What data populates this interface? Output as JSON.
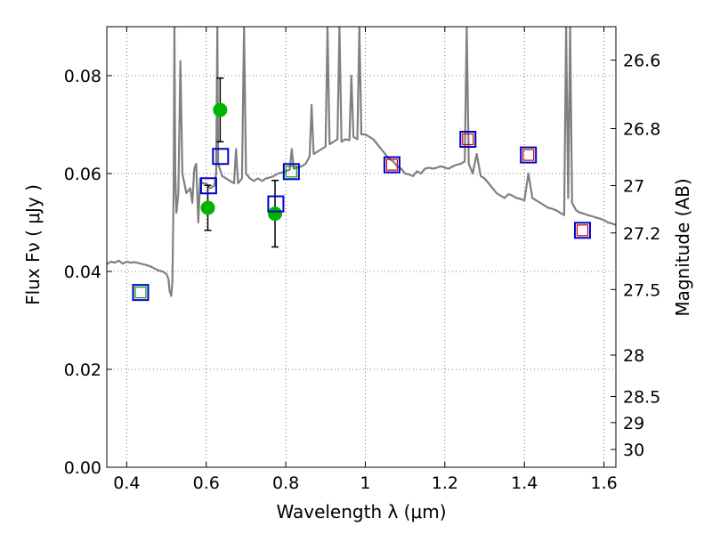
{
  "chart_data": {
    "type": "scatter",
    "xlabel": "Wavelength  λ (μm)",
    "ylabel": "Flux  Fν  ( μJy )",
    "ylabel_right": "Magnitude (AB)",
    "xlim": [
      0.35,
      1.63
    ],
    "ylim": [
      0.0,
      0.09
    ],
    "grid": true,
    "x_ticks": [
      {
        "value": 0.4,
        "label": "0.4"
      },
      {
        "value": 0.6,
        "label": "0.6"
      },
      {
        "value": 0.8,
        "label": "0.8"
      },
      {
        "value": 1.0,
        "label": "1"
      },
      {
        "value": 1.2,
        "label": "1.2"
      },
      {
        "value": 1.4,
        "label": "1.4"
      },
      {
        "value": 1.6,
        "label": "1.6"
      }
    ],
    "y_ticks": [
      {
        "value": 0.0,
        "label": "0.00"
      },
      {
        "value": 0.02,
        "label": "0.02"
      },
      {
        "value": 0.04,
        "label": "0.04"
      },
      {
        "value": 0.06,
        "label": "0.06"
      },
      {
        "value": 0.08,
        "label": "0.08"
      }
    ],
    "mag_ticks": [
      {
        "mag": 26.6,
        "label": "26.6"
      },
      {
        "mag": 26.8,
        "label": "26.8"
      },
      {
        "mag": 27.0,
        "label": "27"
      },
      {
        "mag": 27.2,
        "label": "27.2"
      },
      {
        "mag": 27.5,
        "label": "27.5"
      },
      {
        "mag": 28.0,
        "label": "28"
      },
      {
        "mag": 28.5,
        "label": "28.5"
      },
      {
        "mag": 29.0,
        "label": "29"
      },
      {
        "mag": 30.0,
        "label": "30"
      }
    ],
    "colors": {
      "spectrum": "#808080",
      "observed": "#00b400",
      "errorbar": "#000000",
      "model_box": "#0000cc",
      "green_box": "#00a000",
      "red_box": "#cc0000",
      "grid": "#555555"
    },
    "spectrum": [
      [
        0.35,
        0.0415
      ],
      [
        0.36,
        0.042
      ],
      [
        0.37,
        0.0418
      ],
      [
        0.38,
        0.0422
      ],
      [
        0.39,
        0.0416
      ],
      [
        0.4,
        0.042
      ],
      [
        0.41,
        0.0418
      ],
      [
        0.42,
        0.0419
      ],
      [
        0.43,
        0.0417
      ],
      [
        0.44,
        0.0415
      ],
      [
        0.45,
        0.0413
      ],
      [
        0.46,
        0.041
      ],
      [
        0.47,
        0.0406
      ],
      [
        0.48,
        0.0402
      ],
      [
        0.49,
        0.04
      ],
      [
        0.5,
        0.0395
      ],
      [
        0.505,
        0.0385
      ],
      [
        0.508,
        0.036
      ],
      [
        0.512,
        0.035
      ],
      [
        0.515,
        0.038
      ],
      [
        0.518,
        0.056
      ],
      [
        0.52,
        0.09
      ],
      [
        0.522,
        0.06
      ],
      [
        0.525,
        0.052
      ],
      [
        0.53,
        0.056
      ],
      [
        0.535,
        0.083
      ],
      [
        0.54,
        0.06
      ],
      [
        0.55,
        0.056
      ],
      [
        0.56,
        0.057
      ],
      [
        0.565,
        0.054
      ],
      [
        0.57,
        0.061
      ],
      [
        0.575,
        0.062
      ],
      [
        0.58,
        0.05
      ],
      [
        0.585,
        0.059
      ],
      [
        0.59,
        0.058
      ],
      [
        0.6,
        0.058
      ],
      [
        0.61,
        0.057
      ],
      [
        0.62,
        0.0575
      ],
      [
        0.625,
        0.06
      ],
      [
        0.628,
        0.09
      ],
      [
        0.63,
        0.062
      ],
      [
        0.64,
        0.0595
      ],
      [
        0.65,
        0.059
      ],
      [
        0.66,
        0.0585
      ],
      [
        0.67,
        0.058
      ],
      [
        0.675,
        0.065
      ],
      [
        0.68,
        0.058
      ],
      [
        0.69,
        0.059
      ],
      [
        0.695,
        0.09
      ],
      [
        0.7,
        0.06
      ],
      [
        0.71,
        0.059
      ],
      [
        0.72,
        0.0585
      ],
      [
        0.73,
        0.059
      ],
      [
        0.74,
        0.0585
      ],
      [
        0.75,
        0.059
      ],
      [
        0.76,
        0.0592
      ],
      [
        0.77,
        0.0595
      ],
      [
        0.78,
        0.06
      ],
      [
        0.79,
        0.0602
      ],
      [
        0.8,
        0.0605
      ],
      [
        0.81,
        0.0608
      ],
      [
        0.815,
        0.065
      ],
      [
        0.82,
        0.061
      ],
      [
        0.83,
        0.0612
      ],
      [
        0.84,
        0.0615
      ],
      [
        0.85,
        0.062
      ],
      [
        0.86,
        0.0635
      ],
      [
        0.865,
        0.074
      ],
      [
        0.87,
        0.064
      ],
      [
        0.88,
        0.0645
      ],
      [
        0.89,
        0.065
      ],
      [
        0.9,
        0.0655
      ],
      [
        0.905,
        0.09
      ],
      [
        0.91,
        0.066
      ],
      [
        0.92,
        0.0665
      ],
      [
        0.93,
        0.067
      ],
      [
        0.935,
        0.09
      ],
      [
        0.94,
        0.0665
      ],
      [
        0.95,
        0.067
      ],
      [
        0.96,
        0.0668
      ],
      [
        0.965,
        0.08
      ],
      [
        0.97,
        0.0675
      ],
      [
        0.98,
        0.067
      ],
      [
        0.985,
        0.09
      ],
      [
        0.99,
        0.068
      ],
      [
        1.0,
        0.068
      ],
      [
        1.01,
        0.0675
      ],
      [
        1.02,
        0.067
      ],
      [
        1.03,
        0.066
      ],
      [
        1.04,
        0.065
      ],
      [
        1.05,
        0.064
      ],
      [
        1.06,
        0.063
      ],
      [
        1.07,
        0.0625
      ],
      [
        1.08,
        0.0615
      ],
      [
        1.09,
        0.061
      ],
      [
        1.1,
        0.06
      ],
      [
        1.11,
        0.0598
      ],
      [
        1.12,
        0.0595
      ],
      [
        1.13,
        0.0605
      ],
      [
        1.14,
        0.06
      ],
      [
        1.15,
        0.061
      ],
      [
        1.16,
        0.0612
      ],
      [
        1.17,
        0.061
      ],
      [
        1.18,
        0.0612
      ],
      [
        1.19,
        0.0615
      ],
      [
        1.2,
        0.0612
      ],
      [
        1.21,
        0.061
      ],
      [
        1.22,
        0.0615
      ],
      [
        1.23,
        0.0618
      ],
      [
        1.24,
        0.062
      ],
      [
        1.25,
        0.0625
      ],
      [
        1.255,
        0.09
      ],
      [
        1.26,
        0.062
      ],
      [
        1.27,
        0.06
      ],
      [
        1.28,
        0.064
      ],
      [
        1.29,
        0.0595
      ],
      [
        1.3,
        0.059
      ],
      [
        1.31,
        0.058
      ],
      [
        1.32,
        0.057
      ],
      [
        1.33,
        0.056
      ],
      [
        1.34,
        0.0555
      ],
      [
        1.35,
        0.055
      ],
      [
        1.36,
        0.0558
      ],
      [
        1.37,
        0.0555
      ],
      [
        1.38,
        0.055
      ],
      [
        1.39,
        0.0548
      ],
      [
        1.4,
        0.0545
      ],
      [
        1.41,
        0.06
      ],
      [
        1.42,
        0.055
      ],
      [
        1.43,
        0.0545
      ],
      [
        1.44,
        0.054
      ],
      [
        1.45,
        0.0535
      ],
      [
        1.46,
        0.053
      ],
      [
        1.47,
        0.0528
      ],
      [
        1.48,
        0.0525
      ],
      [
        1.49,
        0.052
      ],
      [
        1.5,
        0.0515
      ],
      [
        1.505,
        0.09
      ],
      [
        1.51,
        0.055
      ],
      [
        1.515,
        0.09
      ],
      [
        1.52,
        0.054
      ],
      [
        1.53,
        0.0525
      ],
      [
        1.54,
        0.052
      ],
      [
        1.55,
        0.0518
      ],
      [
        1.56,
        0.0515
      ],
      [
        1.57,
        0.0513
      ],
      [
        1.58,
        0.051
      ],
      [
        1.59,
        0.0508
      ],
      [
        1.6,
        0.0505
      ],
      [
        1.61,
        0.05
      ],
      [
        1.62,
        0.0498
      ],
      [
        1.63,
        0.0495
      ]
    ],
    "observed": [
      {
        "x": 0.604,
        "y": 0.053,
        "yerr": 0.0046
      },
      {
        "x": 0.635,
        "y": 0.073,
        "yerr": 0.0065
      },
      {
        "x": 0.773,
        "y": 0.0518,
        "yerr": 0.0068
      }
    ],
    "model_boxes_blue": [
      {
        "x": 0.435,
        "y": 0.0357
      },
      {
        "x": 0.606,
        "y": 0.0575
      },
      {
        "x": 0.636,
        "y": 0.0635
      },
      {
        "x": 0.775,
        "y": 0.0538
      },
      {
        "x": 0.814,
        "y": 0.0604
      },
      {
        "x": 1.067,
        "y": 0.0618
      },
      {
        "x": 1.258,
        "y": 0.067
      },
      {
        "x": 1.41,
        "y": 0.0638
      },
      {
        "x": 1.546,
        "y": 0.0484
      }
    ],
    "model_boxes_green": [
      {
        "x": 0.435,
        "y": 0.0357
      },
      {
        "x": 0.814,
        "y": 0.0604
      }
    ],
    "model_boxes_red": [
      {
        "x": 1.067,
        "y": 0.0618
      },
      {
        "x": 1.258,
        "y": 0.067
      },
      {
        "x": 1.41,
        "y": 0.0638
      },
      {
        "x": 1.546,
        "y": 0.0484
      }
    ]
  }
}
